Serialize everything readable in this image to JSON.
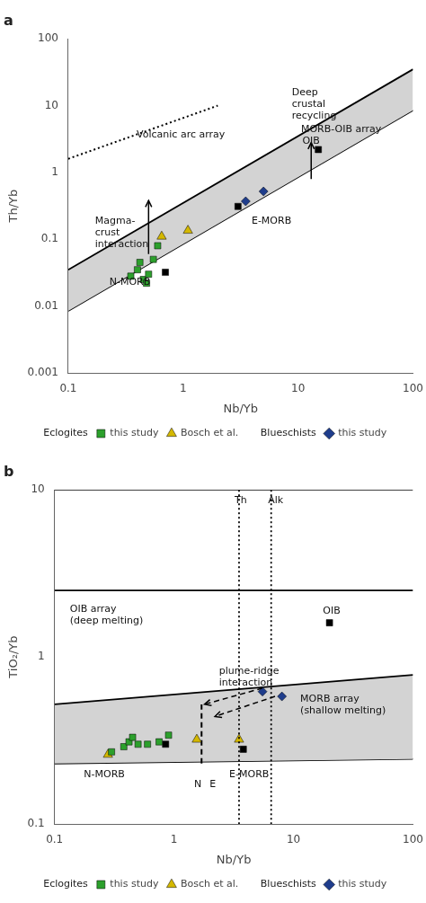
{
  "chart_data": [
    {
      "type": "scatter",
      "title": "a",
      "xlabel": "Nb/Yb",
      "ylabel": "Th/Yb",
      "log": true,
      "xlim": [
        0.1,
        100
      ],
      "ylim": [
        0.001,
        100
      ],
      "xticks": [
        0.1,
        1,
        10,
        100
      ],
      "yticks": [
        0.001,
        0.01,
        0.1,
        1,
        10,
        100
      ],
      "grid": false,
      "legend": "bottom",
      "series": [
        {
          "name": "this study",
          "group": "Eclogites",
          "type": "scatter",
          "marker": "square",
          "color": "#2ca02c",
          "values": [
            [
              0.35,
              0.028
            ],
            [
              0.4,
              0.035
            ],
            [
              0.42,
              0.045
            ],
            [
              0.45,
              0.025
            ],
            [
              0.48,
              0.022
            ],
            [
              0.5,
              0.03
            ],
            [
              0.55,
              0.05
            ],
            [
              0.6,
              0.08
            ]
          ]
        },
        {
          "name": "Bosch et al.",
          "group": "Eclogites",
          "type": "scatter",
          "marker": "triangle",
          "color": "#d4b800",
          "values": [
            [
              0.65,
              0.11
            ],
            [
              1.1,
              0.135
            ]
          ]
        },
        {
          "name": "this study",
          "group": "Blueschists",
          "type": "scatter",
          "marker": "diamond",
          "color": "#1f3d8c",
          "values": [
            [
              3.5,
              0.37
            ],
            [
              5.0,
              0.52
            ]
          ]
        },
        {
          "type": "scatter",
          "marker": "square",
          "color": "black",
          "values": [
            [
              15,
              2.2
            ],
            [
              0.7,
              0.032
            ],
            [
              3.0,
              0.31
            ]
          ]
        },
        {
          "type": "band",
          "color": "#d3d3d3",
          "upper": [
            [
              0.1,
              0.035
            ],
            [
              100,
              35
            ]
          ],
          "lower": [
            [
              0.1,
              0.0085
            ],
            [
              100,
              8.5
            ]
          ]
        },
        {
          "type": "line",
          "line_style": "dotted",
          "color": "black",
          "values": [
            [
              0.1,
              1.6
            ],
            [
              2.0,
              10
            ]
          ]
        },
        {
          "type": "arrow",
          "line_style": "solid",
          "color": "black",
          "from": [
            0.5,
            0.06
          ],
          "to": [
            0.5,
            0.38
          ]
        },
        {
          "type": "arrow",
          "line_style": "solid",
          "color": "black",
          "from": [
            13,
            0.8
          ],
          "to": [
            13,
            2.8
          ]
        }
      ],
      "annotations": [
        {
          "text": "N-MORB",
          "x": 0.22,
          "y": 0.022
        },
        {
          "text": "E-MORB",
          "x": 3.8,
          "y": 0.18
        },
        {
          "text": "OIB",
          "x": 10.5,
          "y": 2.85
        },
        {
          "text": "MORB-OIB array",
          "x": 55,
          "y": 3.8
        },
        {
          "text": "Volcanic arc array",
          "x": 0.38,
          "y": 3.5
        },
        {
          "text": "Magma-\ncrust\ninteraction",
          "x": 0.165,
          "y": 0.12
        },
        {
          "text": "Deep\ncrustal\nrecycling",
          "x": 8.5,
          "y": 6.5
        }
      ]
    },
    {
      "type": "scatter",
      "title": "b",
      "xlabel": "Nb/Yb",
      "ylabel": "TiO₂/Yb",
      "log": true,
      "xlim": [
        0.1,
        100
      ],
      "ylim": [
        0.1,
        10
      ],
      "xticks": [
        0.1,
        1,
        10,
        100
      ],
      "yticks": [
        0.1,
        1,
        10
      ],
      "grid": false,
      "legend": "bottom",
      "series": [
        {
          "name": "this study",
          "group": "Eclogites",
          "type": "scatter",
          "marker": "square",
          "color": "#2ca02c",
          "values": [
            [
              0.3,
              0.27
            ],
            [
              0.38,
              0.29
            ],
            [
              0.42,
              0.31
            ],
            [
              0.45,
              0.33
            ],
            [
              0.5,
              0.3
            ],
            [
              0.6,
              0.3
            ],
            [
              0.75,
              0.31
            ],
            [
              0.9,
              0.34
            ]
          ]
        },
        {
          "name": "Bosch et al.",
          "group": "Eclogites",
          "type": "scatter",
          "marker": "triangle",
          "color": "#d4b800",
          "values": [
            [
              0.28,
              0.26
            ],
            [
              1.55,
              0.32
            ],
            [
              3.5,
              0.32
            ]
          ]
        },
        {
          "name": "this study",
          "group": "Blueschists",
          "type": "scatter",
          "marker": "diamond",
          "color": "#1f3d8c",
          "values": [
            [
              5.5,
              0.62
            ],
            [
              8.0,
              0.58
            ]
          ]
        },
        {
          "type": "scatter",
          "marker": "square",
          "color": "black",
          "values": [
            [
              20,
              1.6
            ],
            [
              0.85,
              0.3
            ],
            [
              3.8,
              0.28
            ]
          ]
        },
        {
          "type": "band",
          "color": "#d3d3d3",
          "upper": [
            [
              0.1,
              0.52
            ],
            [
              100,
              0.78
            ]
          ],
          "lower": [
            [
              0.1,
              0.23
            ],
            [
              100,
              0.245
            ]
          ]
        },
        {
          "type": "hline",
          "line_style": "solid",
          "color": "black",
          "y": 2.5
        },
        {
          "type": "hline",
          "line_style": "solid",
          "color": "black",
          "y": 10
        },
        {
          "type": "vline",
          "line_style": "dotted",
          "color": "black",
          "x": 3.5
        },
        {
          "type": "vline",
          "line_style": "dotted",
          "color": "black",
          "x": 6.5
        },
        {
          "type": "line",
          "line_style": "dashed",
          "color": "black",
          "values": [
            [
              1.7,
              0.23
            ],
            [
              1.7,
              0.52
            ]
          ]
        },
        {
          "type": "arrow",
          "line_style": "dashed",
          "color": "black",
          "from": [
            5.5,
            0.65
          ],
          "to": [
            1.8,
            0.52
          ]
        },
        {
          "type": "arrow",
          "line_style": "dashed",
          "color": "black",
          "from": [
            7.0,
            0.58
          ],
          "to": [
            2.2,
            0.44
          ]
        }
      ],
      "annotations": [
        {
          "text": "N-MORB",
          "x": 0.17,
          "y": 0.195
        },
        {
          "text": "E-MORB",
          "x": 2.8,
          "y": 0.195
        },
        {
          "text": "OIB array\n(deep melting)",
          "x": 0.13,
          "y": 1.75
        },
        {
          "text": "MORB array\n(shallow melting)",
          "x": 11,
          "y": 0.51
        },
        {
          "text": "plume-ridge\ninteraction",
          "x": 2.3,
          "y": 0.75
        },
        {
          "text": "Th",
          "x": 3.1,
          "y": 8.5
        },
        {
          "text": "Alk",
          "x": 5.9,
          "y": 8.5
        },
        {
          "text": "OIB",
          "x": 17,
          "y": 1.85
        },
        {
          "text": "N",
          "x": 1.42,
          "y": 0.17
        },
        {
          "text": "E",
          "x": 1.92,
          "y": 0.17
        }
      ]
    }
  ]
}
